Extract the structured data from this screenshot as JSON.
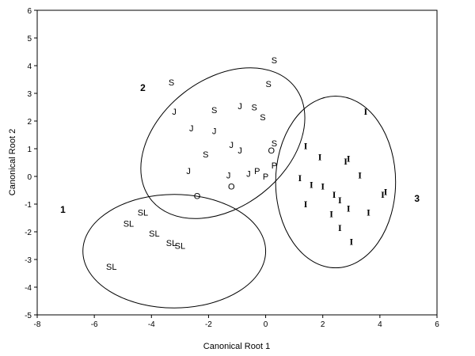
{
  "chart_data": {
    "type": "scatter",
    "xlabel": "Canonical Root 1",
    "ylabel": "Canonical Root 2",
    "xlim": [
      -8,
      6
    ],
    "ylim": [
      -5,
      6
    ],
    "xticks": [
      "-8",
      "-6",
      "-4",
      "-2",
      "0",
      "2",
      "4",
      "6"
    ],
    "yticks": [
      "-5",
      "-4",
      "-3",
      "-2",
      "-1",
      "0",
      "1",
      "2",
      "3",
      "4",
      "5",
      "6"
    ],
    "grid": false,
    "points": [
      {
        "label": "S",
        "x": 0.3,
        "y": 4.2
      },
      {
        "label": "S",
        "x": 0.1,
        "y": 3.35
      },
      {
        "label": "S",
        "x": -3.3,
        "y": 3.4
      },
      {
        "label": "S",
        "x": -1.8,
        "y": 2.4
      },
      {
        "label": "S",
        "x": -0.4,
        "y": 2.5
      },
      {
        "label": "S",
        "x": -0.1,
        "y": 2.15
      },
      {
        "label": "S",
        "x": -2.1,
        "y": 0.8
      },
      {
        "label": "S",
        "x": 0.3,
        "y": 1.2
      },
      {
        "label": "J",
        "x": -3.2,
        "y": 2.35
      },
      {
        "label": "J",
        "x": -0.9,
        "y": 2.55
      },
      {
        "label": "J",
        "x": -2.6,
        "y": 1.75
      },
      {
        "label": "J",
        "x": -1.8,
        "y": 1.65
      },
      {
        "label": "J",
        "x": -1.2,
        "y": 1.15
      },
      {
        "label": "J",
        "x": -0.9,
        "y": 0.95
      },
      {
        "label": "J",
        "x": -2.7,
        "y": 0.2
      },
      {
        "label": "J",
        "x": -1.3,
        "y": 0.05
      },
      {
        "label": "J",
        "x": -0.6,
        "y": 0.1
      },
      {
        "label": "O",
        "x": 0.2,
        "y": 0.95
      },
      {
        "label": "O",
        "x": -1.2,
        "y": -0.35
      },
      {
        "label": "O",
        "x": -2.4,
        "y": -0.7
      },
      {
        "label": "P",
        "x": -0.3,
        "y": 0.2
      },
      {
        "label": "P",
        "x": 0.3,
        "y": 0.4
      },
      {
        "label": "P",
        "x": 0,
        "y": 0
      },
      {
        "label": "SL",
        "x": -4.3,
        "y": -1.3
      },
      {
        "label": "SL",
        "x": -4.8,
        "y": -1.7
      },
      {
        "label": "SL",
        "x": -3.9,
        "y": -2.05
      },
      {
        "label": "SL",
        "x": -3.3,
        "y": -2.4
      },
      {
        "label": "SL",
        "x": -3,
        "y": -2.5
      },
      {
        "label": "SL",
        "x": -5.4,
        "y": -3.25
      },
      {
        "label": "I",
        "x": 3.5,
        "y": 2.35
      },
      {
        "label": "I",
        "x": 1.4,
        "y": 1.1
      },
      {
        "label": "I",
        "x": 1.9,
        "y": 0.7
      },
      {
        "label": "I",
        "x": 2.8,
        "y": 0.55
      },
      {
        "label": "I",
        "x": 2.9,
        "y": 0.65
      },
      {
        "label": "I",
        "x": 3.3,
        "y": 0.05
      },
      {
        "label": "I",
        "x": 1.2,
        "y": -0.05
      },
      {
        "label": "I",
        "x": 1.6,
        "y": -0.3
      },
      {
        "label": "I",
        "x": 2,
        "y": -0.35
      },
      {
        "label": "I",
        "x": 2.4,
        "y": -0.65
      },
      {
        "label": "I",
        "x": 2.6,
        "y": -0.85
      },
      {
        "label": "I",
        "x": 2.9,
        "y": -1.15
      },
      {
        "label": "I",
        "x": 2.3,
        "y": -1.35
      },
      {
        "label": "I",
        "x": 3.6,
        "y": -1.3
      },
      {
        "label": "I",
        "x": 4.1,
        "y": -0.65
      },
      {
        "label": "I",
        "x": 4.2,
        "y": -0.55
      },
      {
        "label": "I",
        "x": 1.4,
        "y": -1
      },
      {
        "label": "I",
        "x": 2.6,
        "y": -1.85
      },
      {
        "label": "I",
        "x": 3,
        "y": -2.35
      }
    ],
    "ellipses": [
      {
        "label": "1",
        "cx": -3.2,
        "cy": -2.7,
        "rx": 3.2,
        "ry": 2.05,
        "angle": 0
      },
      {
        "label": "2",
        "cx": -1.5,
        "cy": 1.2,
        "rx": 3.2,
        "ry": 2.3,
        "angle": -38
      },
      {
        "label": "3",
        "cx": 2.45,
        "cy": -0.2,
        "rx": 2.1,
        "ry": 3.1,
        "angle": 0
      }
    ],
    "group_labels": [
      {
        "text": "1",
        "x": -7.1,
        "y": -1.2
      },
      {
        "text": "2",
        "x": -4.3,
        "y": 3.2
      },
      {
        "text": "3",
        "x": 5.3,
        "y": -0.8
      }
    ]
  }
}
